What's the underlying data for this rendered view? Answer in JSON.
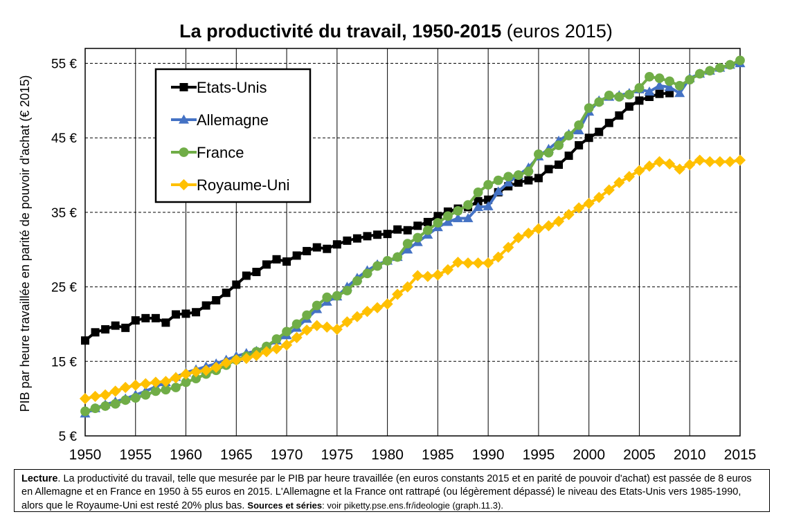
{
  "header": {
    "title_bold": "La productivité du travail, 1950-2015",
    "title_normal": " (euros 2015)"
  },
  "caption": {
    "lead": "Lecture",
    "text": ". La productivité du travail, telle que mesurée par le PIB par heure travaillée (en euros constants 2015 et en parité de pouvoir d'achat) est passée de 8 euros en Allemagne et en France en 1950 à 55 euros en 2015. L'Allemagne et la France ont rattrapé (ou légèrement dépassé) le niveau des Etats-Unis vers 1985-1990, alors que le Royaume-Uni est resté 20% plus bas. ",
    "sources_label": "Sources et séries",
    "sources_text": ": voir piketty.pse.ens.fr/ideologie (graph.11.3)."
  },
  "chart_data": {
    "type": "line",
    "title": "La productivité du travail, 1950-2015 (euros 2015)",
    "xlabel": "",
    "ylabel": "PIB par heure travaillée en parité de pouvoir d'achat (€ 2015)",
    "xlim": [
      1950,
      2015
    ],
    "ylim": [
      5,
      57
    ],
    "xticks": [
      1950,
      1955,
      1960,
      1965,
      1970,
      1975,
      1980,
      1985,
      1990,
      1995,
      2000,
      2005,
      2010,
      2015
    ],
    "yticks": [
      5,
      15,
      25,
      35,
      45,
      55
    ],
    "ytick_labels": [
      "5 €",
      "15 €",
      "25 €",
      "35 €",
      "45 €",
      "55 €"
    ],
    "grid": true,
    "legend_position": "top-left",
    "series": [
      {
        "name": "Etats-Unis",
        "color": "#000000",
        "marker": "square",
        "x": [
          1950,
          1951,
          1952,
          1953,
          1954,
          1955,
          1956,
          1957,
          1958,
          1959,
          1960,
          1961,
          1962,
          1963,
          1964,
          1965,
          1966,
          1967,
          1968,
          1969,
          1970,
          1971,
          1972,
          1973,
          1974,
          1975,
          1976,
          1977,
          1978,
          1979,
          1980,
          1981,
          1982,
          1983,
          1984,
          1985,
          1986,
          1987,
          1988,
          1989,
          1990,
          1991,
          1992,
          1993,
          1994,
          1995,
          1996,
          1997,
          1998,
          1999,
          2000,
          2001,
          2002,
          2003,
          2004,
          2005,
          2006,
          2007,
          2008
        ],
        "values": [
          17.8,
          18.9,
          19.3,
          19.8,
          19.5,
          20.5,
          20.8,
          20.8,
          20.2,
          21.3,
          21.4,
          21.6,
          22.5,
          23.2,
          24.2,
          25.3,
          26.5,
          27.0,
          28.0,
          28.7,
          28.4,
          29.2,
          29.8,
          30.3,
          30.1,
          30.7,
          31.2,
          31.5,
          31.8,
          32.0,
          32.1,
          32.7,
          32.6,
          33.2,
          33.7,
          34.5,
          35.1,
          35.5,
          35.7,
          36.5,
          36.7,
          37.7,
          38.5,
          39.0,
          39.3,
          39.6,
          40.8,
          41.4,
          42.6,
          44.0,
          45.0,
          45.8,
          47.0,
          48.0,
          49.2,
          50.0,
          50.5,
          50.9,
          51.0
        ]
      },
      {
        "name": "Allemagne",
        "color": "#4472C4",
        "marker": "triangle",
        "x": [
          1950,
          1951,
          1952,
          1953,
          1954,
          1955,
          1956,
          1957,
          1958,
          1959,
          1960,
          1961,
          1962,
          1963,
          1964,
          1965,
          1966,
          1967,
          1968,
          1969,
          1970,
          1971,
          1972,
          1973,
          1974,
          1975,
          1976,
          1977,
          1978,
          1979,
          1980,
          1981,
          1982,
          1983,
          1984,
          1985,
          1986,
          1987,
          1988,
          1989,
          1990,
          1991,
          1992,
          1993,
          1994,
          1995,
          1996,
          1997,
          1998,
          1999,
          2000,
          2001,
          2002,
          2003,
          2004,
          2005,
          2006,
          2007,
          2008,
          2009,
          2010,
          2011,
          2012,
          2013,
          2014,
          2015
        ],
        "values": [
          8.0,
          8.7,
          9.2,
          9.6,
          10.0,
          10.5,
          11.0,
          11.6,
          12.2,
          12.9,
          13.5,
          13.9,
          14.3,
          14.7,
          15.2,
          15.7,
          16.1,
          16.4,
          17.0,
          17.8,
          18.5,
          19.5,
          20.7,
          22.0,
          23.0,
          23.7,
          25.0,
          26.2,
          27.2,
          28.0,
          28.5,
          29.0,
          30.0,
          31.0,
          32.0,
          33.0,
          33.7,
          34.2,
          34.2,
          35.7,
          35.8,
          37.8,
          39.0,
          40.0,
          41.0,
          42.5,
          43.5,
          44.6,
          45.5,
          46.0,
          48.5,
          50.0,
          50.5,
          50.7,
          51.0,
          51.5,
          51.2,
          52.0,
          51.8,
          51.0,
          53.0,
          53.6,
          54.0,
          54.4,
          54.8,
          55.0
        ]
      },
      {
        "name": "France",
        "color": "#70AD47",
        "marker": "circle",
        "x": [
          1950,
          1951,
          1952,
          1953,
          1954,
          1955,
          1956,
          1957,
          1958,
          1959,
          1960,
          1961,
          1962,
          1963,
          1964,
          1965,
          1966,
          1967,
          1968,
          1969,
          1970,
          1971,
          1972,
          1973,
          1974,
          1975,
          1976,
          1977,
          1978,
          1979,
          1980,
          1981,
          1982,
          1983,
          1984,
          1985,
          1986,
          1987,
          1988,
          1989,
          1990,
          1991,
          1992,
          1993,
          1994,
          1995,
          1996,
          1997,
          1998,
          1999,
          2000,
          2001,
          2002,
          2003,
          2004,
          2005,
          2006,
          2007,
          2008,
          2009,
          2010,
          2011,
          2012,
          2013,
          2014,
          2015
        ],
        "values": [
          8.3,
          8.7,
          9.0,
          9.3,
          9.8,
          10.1,
          10.5,
          11.0,
          11.2,
          11.5,
          12.2,
          12.7,
          13.3,
          13.8,
          14.5,
          15.2,
          15.7,
          16.3,
          17.0,
          18.0,
          19.0,
          20.0,
          21.2,
          22.5,
          23.6,
          23.8,
          24.5,
          25.8,
          26.8,
          27.8,
          28.5,
          29.0,
          30.8,
          31.6,
          32.6,
          33.6,
          34.5,
          35.2,
          36.0,
          37.7,
          38.7,
          39.3,
          39.8,
          40.0,
          40.5,
          42.8,
          43.0,
          44.0,
          45.3,
          46.7,
          49.0,
          49.8,
          50.7,
          50.5,
          50.8,
          51.7,
          53.2,
          53.0,
          52.6,
          52.0,
          52.8,
          53.6,
          54.0,
          54.4,
          54.8,
          55.4
        ]
      },
      {
        "name": "Royaume-Uni",
        "color": "#FFC000",
        "marker": "diamond",
        "x": [
          1950,
          1951,
          1952,
          1953,
          1954,
          1955,
          1956,
          1957,
          1958,
          1959,
          1960,
          1961,
          1962,
          1963,
          1964,
          1965,
          1966,
          1967,
          1968,
          1969,
          1970,
          1971,
          1972,
          1973,
          1974,
          1975,
          1976,
          1977,
          1978,
          1979,
          1980,
          1981,
          1982,
          1983,
          1984,
          1985,
          1986,
          1987,
          1988,
          1989,
          1990,
          1991,
          1992,
          1993,
          1994,
          1995,
          1996,
          1997,
          1998,
          1999,
          2000,
          2001,
          2002,
          2003,
          2004,
          2005,
          2006,
          2007,
          2008,
          2009,
          2010,
          2011,
          2012,
          2013,
          2014,
          2015
        ],
        "values": [
          10.0,
          10.3,
          10.5,
          11.0,
          11.5,
          11.8,
          12.0,
          12.2,
          12.3,
          12.8,
          13.3,
          13.6,
          13.8,
          14.2,
          14.8,
          15.2,
          15.4,
          15.8,
          16.3,
          16.7,
          17.2,
          18.2,
          19.2,
          19.8,
          19.6,
          19.3,
          20.3,
          21.0,
          21.7,
          22.2,
          22.7,
          24.0,
          25.0,
          26.5,
          26.4,
          26.6,
          27.3,
          28.3,
          28.2,
          28.2,
          28.2,
          29.0,
          30.3,
          31.6,
          32.2,
          32.8,
          33.2,
          33.8,
          34.7,
          35.6,
          36.2,
          37.0,
          38.0,
          39.0,
          39.8,
          40.6,
          41.2,
          41.8,
          41.5,
          40.8,
          41.4,
          42.0,
          41.8,
          41.8,
          41.8,
          42.0
        ]
      }
    ]
  }
}
